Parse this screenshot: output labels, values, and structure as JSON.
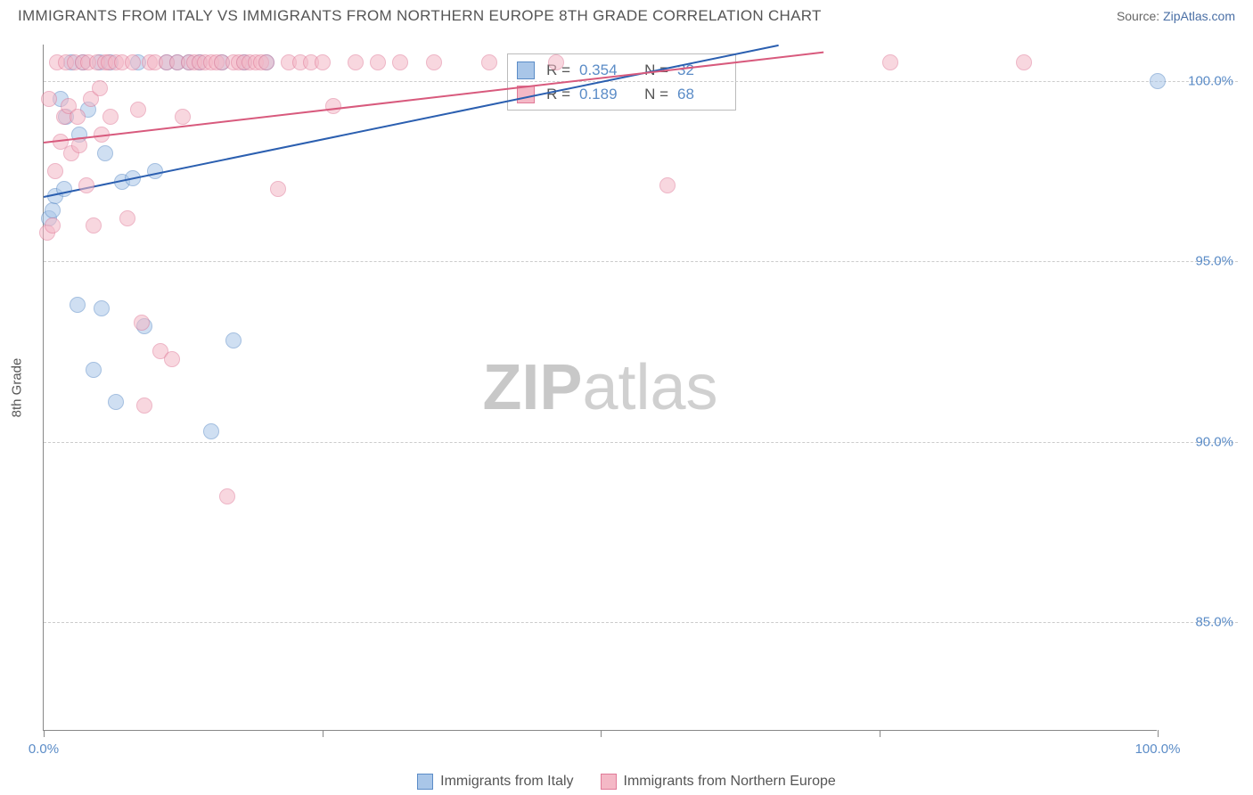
{
  "title": "IMMIGRANTS FROM ITALY VS IMMIGRANTS FROM NORTHERN EUROPE 8TH GRADE CORRELATION CHART",
  "source_prefix": "Source: ",
  "source_link": "ZipAtlas.com",
  "watermark_bold": "ZIP",
  "watermark_rest": "atlas",
  "chart": {
    "type": "scatter",
    "xlim": [
      0,
      100
    ],
    "ylim": [
      82,
      101
    ],
    "background_color": "#ffffff",
    "grid_color": "#cccccc",
    "axis_color": "#888888",
    "tick_label_color": "#5b8cc7",
    "tick_fontsize": 15,
    "yaxis_title": "8th Grade",
    "ytick_values": [
      85,
      90,
      95,
      100
    ],
    "ytick_labels": [
      "85.0%",
      "90.0%",
      "95.0%",
      "100.0%"
    ],
    "xtick_values": [
      0,
      25,
      50,
      75,
      100
    ],
    "xtick_label_left": "0.0%",
    "xtick_label_right": "100.0%",
    "point_radius": 9,
    "point_opacity": 0.55,
    "series": [
      {
        "name": "Immigrants from Italy",
        "fill_color": "#a9c6e8",
        "stroke_color": "#5b8cc7",
        "line_color": "#2b5fb0",
        "R": "0.354",
        "N": "32",
        "trend": {
          "x1": 0,
          "y1": 96.8,
          "x2": 66,
          "y2": 101
        },
        "points": [
          [
            0.5,
            96.2
          ],
          [
            0.8,
            96.4
          ],
          [
            1,
            96.8
          ],
          [
            1.5,
            99.5
          ],
          [
            1.8,
            97.0
          ],
          [
            2,
            99.0
          ],
          [
            2.5,
            100.5
          ],
          [
            3,
            93.8
          ],
          [
            3.2,
            98.5
          ],
          [
            3.5,
            100.5
          ],
          [
            4,
            99.2
          ],
          [
            4.5,
            92.0
          ],
          [
            5,
            100.5
          ],
          [
            5.2,
            93.7
          ],
          [
            5.5,
            98.0
          ],
          [
            6,
            100.5
          ],
          [
            6.5,
            91.1
          ],
          [
            7,
            97.2
          ],
          [
            8,
            97.3
          ],
          [
            8.5,
            100.5
          ],
          [
            9,
            93.2
          ],
          [
            10,
            97.5
          ],
          [
            11,
            100.5
          ],
          [
            12,
            100.5
          ],
          [
            13,
            100.5
          ],
          [
            14,
            100.5
          ],
          [
            15,
            90.3
          ],
          [
            16,
            100.5
          ],
          [
            17,
            92.8
          ],
          [
            18,
            100.5
          ],
          [
            20,
            100.5
          ],
          [
            100,
            100.0
          ]
        ]
      },
      {
        "name": "Immigrants from Northern Europe",
        "fill_color": "#f4b8c6",
        "stroke_color": "#e07a98",
        "line_color": "#d85a7d",
        "R": "0.189",
        "N": "68",
        "trend": {
          "x1": 0,
          "y1": 98.3,
          "x2": 70,
          "y2": 100.8
        },
        "points": [
          [
            0.3,
            95.8
          ],
          [
            0.5,
            99.5
          ],
          [
            0.8,
            96.0
          ],
          [
            1,
            97.5
          ],
          [
            1.2,
            100.5
          ],
          [
            1.5,
            98.3
          ],
          [
            1.8,
            99.0
          ],
          [
            2,
            100.5
          ],
          [
            2.2,
            99.3
          ],
          [
            2.5,
            98.0
          ],
          [
            2.8,
            100.5
          ],
          [
            3,
            99.0
          ],
          [
            3.2,
            98.2
          ],
          [
            3.5,
            100.5
          ],
          [
            3.8,
            97.1
          ],
          [
            4,
            100.5
          ],
          [
            4.2,
            99.5
          ],
          [
            4.5,
            96.0
          ],
          [
            4.8,
            100.5
          ],
          [
            5,
            99.8
          ],
          [
            5.2,
            98.5
          ],
          [
            5.5,
            100.5
          ],
          [
            5.8,
            100.5
          ],
          [
            6,
            99.0
          ],
          [
            6.5,
            100.5
          ],
          [
            7,
            100.5
          ],
          [
            7.5,
            96.2
          ],
          [
            8,
            100.5
          ],
          [
            8.5,
            99.2
          ],
          [
            8.8,
            93.3
          ],
          [
            9,
            91.0
          ],
          [
            9.5,
            100.5
          ],
          [
            10,
            100.5
          ],
          [
            10.5,
            92.5
          ],
          [
            11,
            100.5
          ],
          [
            11.5,
            92.3
          ],
          [
            12,
            100.5
          ],
          [
            12.5,
            99.0
          ],
          [
            13,
            100.5
          ],
          [
            13.5,
            100.5
          ],
          [
            14,
            100.5
          ],
          [
            14.5,
            100.5
          ],
          [
            15,
            100.5
          ],
          [
            15.5,
            100.5
          ],
          [
            16,
            100.5
          ],
          [
            16.5,
            88.5
          ],
          [
            17,
            100.5
          ],
          [
            17.5,
            100.5
          ],
          [
            18,
            100.5
          ],
          [
            18.5,
            100.5
          ],
          [
            19,
            100.5
          ],
          [
            19.5,
            100.5
          ],
          [
            20,
            100.5
          ],
          [
            21,
            97.0
          ],
          [
            22,
            100.5
          ],
          [
            23,
            100.5
          ],
          [
            24,
            100.5
          ],
          [
            25,
            100.5
          ],
          [
            26,
            99.3
          ],
          [
            28,
            100.5
          ],
          [
            30,
            100.5
          ],
          [
            32,
            100.5
          ],
          [
            35,
            100.5
          ],
          [
            40,
            100.5
          ],
          [
            46,
            100.5
          ],
          [
            56,
            97.1
          ],
          [
            76,
            100.5
          ],
          [
            88,
            100.5
          ]
        ]
      }
    ]
  }
}
